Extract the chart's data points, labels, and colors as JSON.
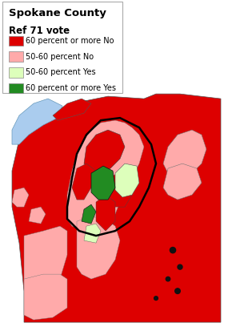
{
  "title": "Spokane County",
  "subtitle": "Ref 71 vote",
  "legend": [
    {
      "label": "60 percent or more No",
      "color": "#dd0000"
    },
    {
      "label": "50-60 percent No",
      "color": "#ffaaaa"
    },
    {
      "label": "50-60 percent Yes",
      "color": "#ddffbb"
    },
    {
      "label": "60 percent or more Yes",
      "color": "#228B22"
    }
  ],
  "bg_color": "#ffffff",
  "title_fontsize": 9.5,
  "subtitle_fontsize": 8.5,
  "legend_fontsize": 7.0,
  "colors": {
    "deep_red": "#dd0000",
    "light_pink": "#ffaaaa",
    "light_green": "#ddffbb",
    "deep_green": "#228B22",
    "water": "#aaccee",
    "outline_thin": "#888888",
    "outline_thick": "#111111",
    "white": "#ffffff"
  }
}
